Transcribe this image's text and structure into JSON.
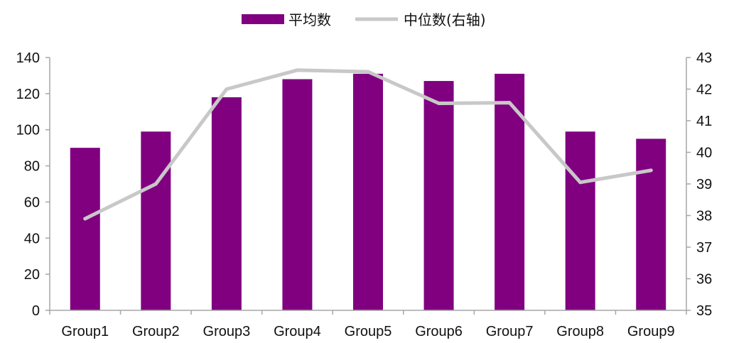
{
  "chart_data": {
    "type": "bar",
    "title": "",
    "xlabel": "",
    "ylabel": "",
    "categories": [
      "Group1",
      "Group2",
      "Group3",
      "Group4",
      "Group5",
      "Group6",
      "Group7",
      "Group8",
      "Group9"
    ],
    "series": [
      {
        "name": "平均数",
        "type": "bar",
        "axis": "left",
        "color": "#800080",
        "values": [
          90,
          99,
          118,
          128,
          131,
          127,
          131,
          99,
          95
        ]
      },
      {
        "name": "中位数(右轴)",
        "type": "line",
        "axis": "right",
        "color": "#c8c8c8",
        "values": [
          37.9,
          39.0,
          42.0,
          42.6,
          42.55,
          41.55,
          41.57,
          39.05,
          39.43
        ]
      }
    ],
    "y_left": {
      "lim": [
        0,
        140
      ],
      "ticks": [
        "0",
        "20",
        "40",
        "60",
        "80",
        "100",
        "120",
        "140"
      ]
    },
    "y_right": {
      "lim": [
        35,
        43
      ],
      "ticks": [
        "35",
        "36",
        "37",
        "38",
        "39",
        "40",
        "41",
        "42",
        "43"
      ]
    },
    "grid": false,
    "legend": {
      "position": "top-center"
    },
    "colors": {
      "axis": "#a6a6a6",
      "text": "#111111"
    }
  }
}
